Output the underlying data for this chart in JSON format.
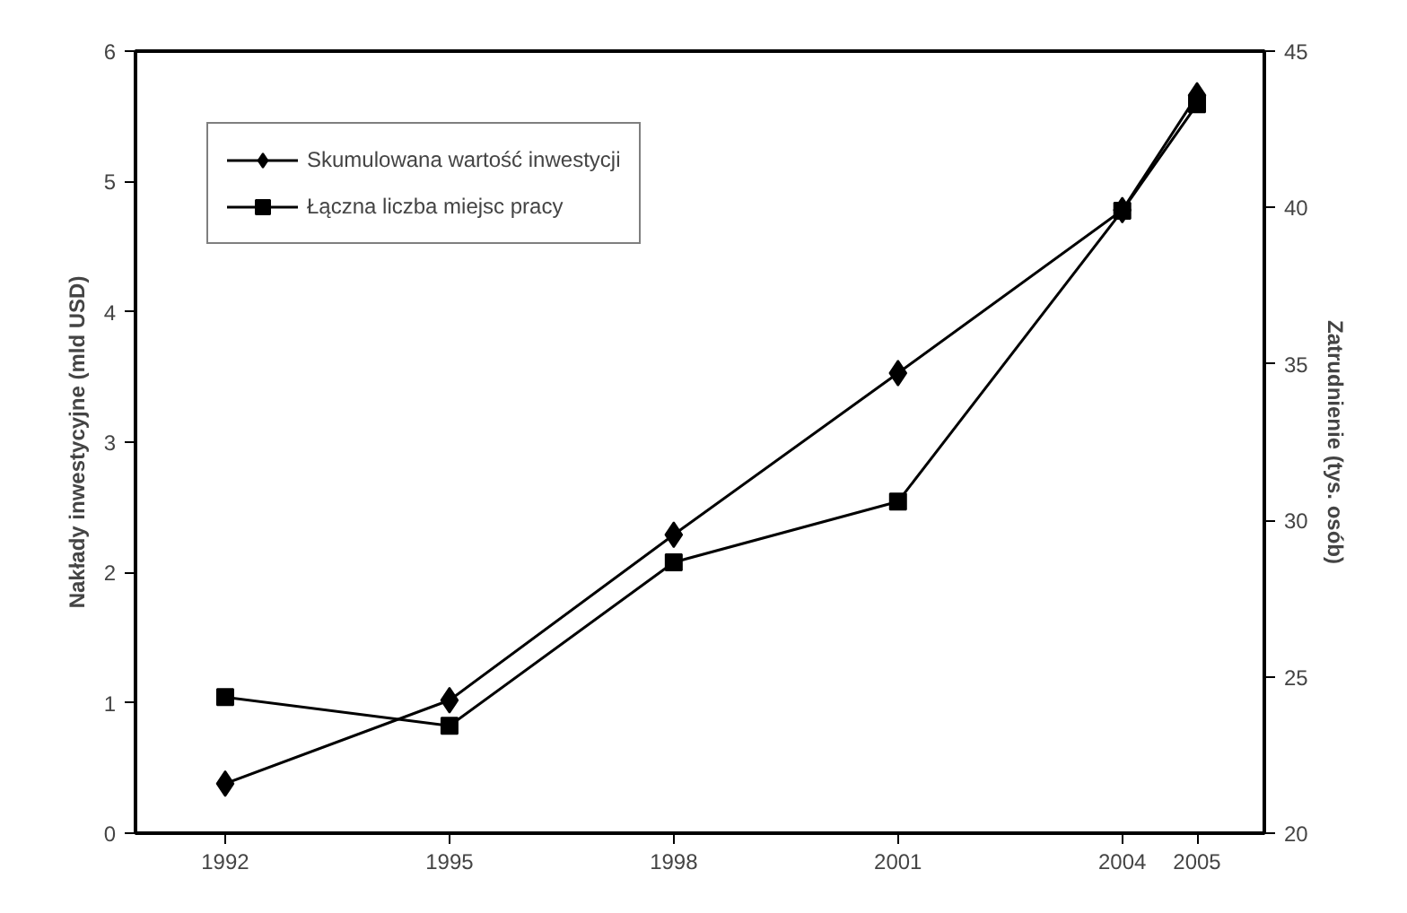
{
  "chart_data": {
    "type": "line",
    "ylabel": "Nakłady inwestycyjne (mld USD)",
    "y2label": "Zatrudnienie (tys. osób)",
    "x": [
      1992,
      1995,
      1998,
      2001,
      2004,
      2005
    ],
    "xlim": [
      1990.8,
      2005.9
    ],
    "xticks": [
      1992,
      1995,
      1998,
      2001,
      2004,
      2005
    ],
    "ylim": [
      0,
      6
    ],
    "yticks": [
      0,
      1,
      2,
      3,
      4,
      5,
      6
    ],
    "y2lim": [
      20,
      45
    ],
    "y2ticks": [
      20,
      25,
      30,
      35,
      40,
      45
    ],
    "series": [
      {
        "name": "Skumulowana wartość inwestycji",
        "color": "#000000",
        "marker": "diamond",
        "values": [
          0.38,
          1.02,
          2.29,
          3.53,
          4.78,
          5.66
        ]
      },
      {
        "name": "Łączna liczba miejsc pracy",
        "color": "#000000",
        "marker": "square",
        "axis": "y2",
        "values": [
          24.35,
          23.43,
          28.66,
          30.6,
          39.9,
          43.3
        ]
      }
    ],
    "grid": false,
    "legend": "top left",
    "line_style": "solid"
  }
}
